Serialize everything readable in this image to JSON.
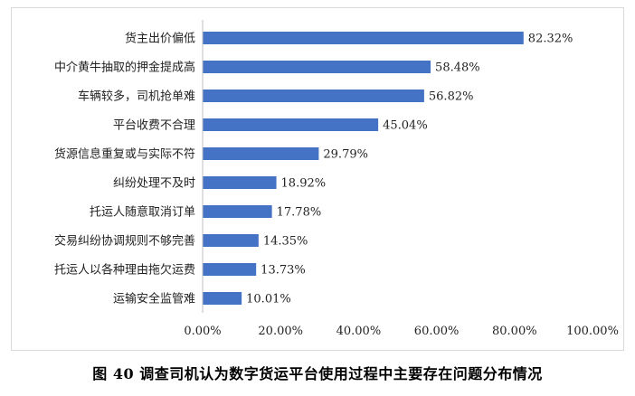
{
  "caption": "图 40  调查司机认为数字货运平台使用过程中主要存在问题分布情况",
  "chart_data": {
    "type": "bar",
    "orientation": "horizontal",
    "categories": [
      "货主出价偏低",
      "中介黄牛抽取的押金提成高",
      "车辆较多，司机抢单难",
      "平台收费不合理",
      "货源信息重复或与实际不符",
      "纠纷处理不及时",
      "托运人随意取消订单",
      "交易纠纷协调规则不够完善",
      "托运人以各种理由拖欠运费",
      "运输安全监管难"
    ],
    "values": [
      82.32,
      58.48,
      56.82,
      45.04,
      29.79,
      18.92,
      17.78,
      14.35,
      13.73,
      10.01
    ],
    "value_labels": [
      "82.32%",
      "58.48%",
      "56.82%",
      "45.04%",
      "29.79%",
      "18.92%",
      "17.78%",
      "14.35%",
      "13.73%",
      "10.01%"
    ],
    "x_ticks": [
      "0.00%",
      "20.00%",
      "40.00%",
      "60.00%",
      "80.00%",
      "100.00%"
    ],
    "xlim": [
      0,
      100
    ],
    "bar_color": "#4472c4",
    "grid": false,
    "legend": false
  }
}
